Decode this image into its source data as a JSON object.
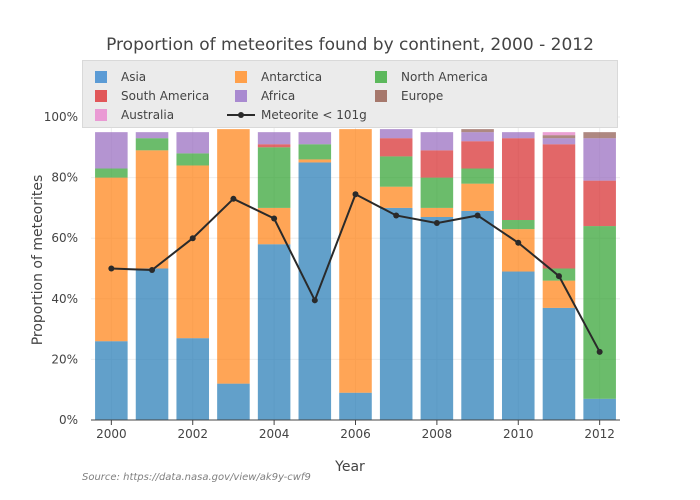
{
  "chart_data": {
    "type": "bar",
    "stacked": true,
    "title": "Proportion of meteorites found by continent, 2000 - 2012",
    "xlabel": "Year",
    "ylabel": "Proportion of meteorites",
    "source": "Source: https://data.nasa.gov/view/ak9y-cwf9",
    "categories": [
      "2000",
      "2001",
      "2002",
      "2003",
      "2004",
      "2005",
      "2006",
      "2007",
      "2008",
      "2009",
      "2010",
      "2011",
      "2012"
    ],
    "x_tick_labels": [
      "2000",
      "2002",
      "2004",
      "2006",
      "2008",
      "2010",
      "2012"
    ],
    "y_tick_labels": [
      "0%",
      "20%",
      "40%",
      "60%",
      "80%",
      "100%"
    ],
    "ylim": [
      0,
      1.0
    ],
    "grid": true,
    "legend_position": "top",
    "series": [
      {
        "name": "Asia",
        "color": "#1f77b4",
        "values": [
          0.26,
          0.5,
          0.27,
          0.12,
          0.58,
          0.85,
          0.09,
          0.7,
          0.67,
          0.69,
          0.49,
          0.37,
          0.07
        ]
      },
      {
        "name": "Antarctica",
        "color": "#ff7f0e",
        "values": [
          0.54,
          0.39,
          0.57,
          0.84,
          0.12,
          0.01,
          0.87,
          0.07,
          0.03,
          0.09,
          0.14,
          0.09,
          0.0
        ]
      },
      {
        "name": "North America",
        "color": "#2ca02c",
        "values": [
          0.03,
          0.04,
          0.04,
          0.0,
          0.2,
          0.05,
          0.0,
          0.1,
          0.1,
          0.05,
          0.03,
          0.04,
          0.57
        ]
      },
      {
        "name": "South America",
        "color": "#d62728",
        "values": [
          0.0,
          0.0,
          0.0,
          0.0,
          0.01,
          0.0,
          0.0,
          0.06,
          0.09,
          0.09,
          0.27,
          0.41,
          0.15
        ]
      },
      {
        "name": "Africa",
        "color": "#9467bd",
        "values": [
          0.12,
          0.02,
          0.07,
          0.0,
          0.04,
          0.04,
          0.0,
          0.03,
          0.06,
          0.03,
          0.02,
          0.02,
          0.14
        ]
      },
      {
        "name": "Europe",
        "color": "#8c564b",
        "values": [
          0.0,
          0.0,
          0.0,
          0.0,
          0.0,
          0.0,
          0.0,
          0.0,
          0.0,
          0.01,
          0.0,
          0.01,
          0.02
        ]
      },
      {
        "name": "Australia",
        "color": "#e377c2",
        "values": [
          0.0,
          0.0,
          0.0,
          0.0,
          0.0,
          0.0,
          0.0,
          0.0,
          0.0,
          0.0,
          0.0,
          0.01,
          0.0
        ]
      }
    ],
    "line_series": {
      "name": "Meteorite < 101g",
      "color": "#2a2a2a",
      "values": [
        0.5,
        0.495,
        0.6,
        0.73,
        0.665,
        0.395,
        0.745,
        0.675,
        0.65,
        0.675,
        0.585,
        0.475,
        0.225
      ]
    }
  }
}
